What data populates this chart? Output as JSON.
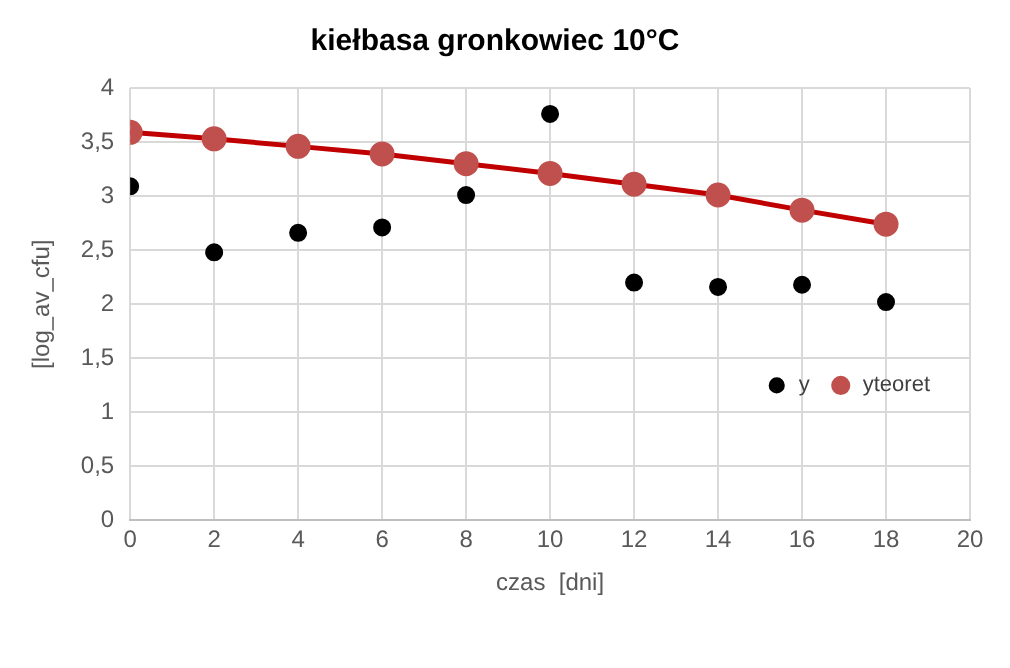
{
  "chart_data": {
    "type": "scatter",
    "title": "kiełbasa gronkowiec 10°C",
    "xlabel": "czas  [dni]",
    "ylabel": "[log_av_cfu]",
    "x": [
      0,
      2,
      4,
      6,
      8,
      10,
      12,
      14,
      16,
      18
    ],
    "series": [
      {
        "name": "y",
        "color": "#000000",
        "type": "scatter",
        "values": [
          3.09,
          2.48,
          2.66,
          2.71,
          3.01,
          3.76,
          2.2,
          2.16,
          2.18,
          2.02
        ]
      },
      {
        "name": "yteoret",
        "color": "#c0504d",
        "type": "line",
        "values": [
          3.59,
          3.53,
          3.46,
          3.39,
          3.3,
          3.21,
          3.11,
          3.01,
          2.87,
          2.74
        ]
      }
    ],
    "xlim": [
      0,
      20
    ],
    "xticks": [
      0,
      2,
      4,
      6,
      8,
      10,
      12,
      14,
      16,
      18,
      20
    ],
    "ylim": [
      0,
      4
    ],
    "yticks": [
      0,
      {
        "value": 0.5,
        "label": "0,5"
      },
      1,
      {
        "value": 1.5,
        "label": "1,5"
      },
      2,
      {
        "value": 2.5,
        "label": "2,5"
      },
      3,
      {
        "value": 3.5,
        "label": "3,5"
      },
      4
    ],
    "grid": true,
    "legend": "bottom right",
    "marker": "circle"
  }
}
